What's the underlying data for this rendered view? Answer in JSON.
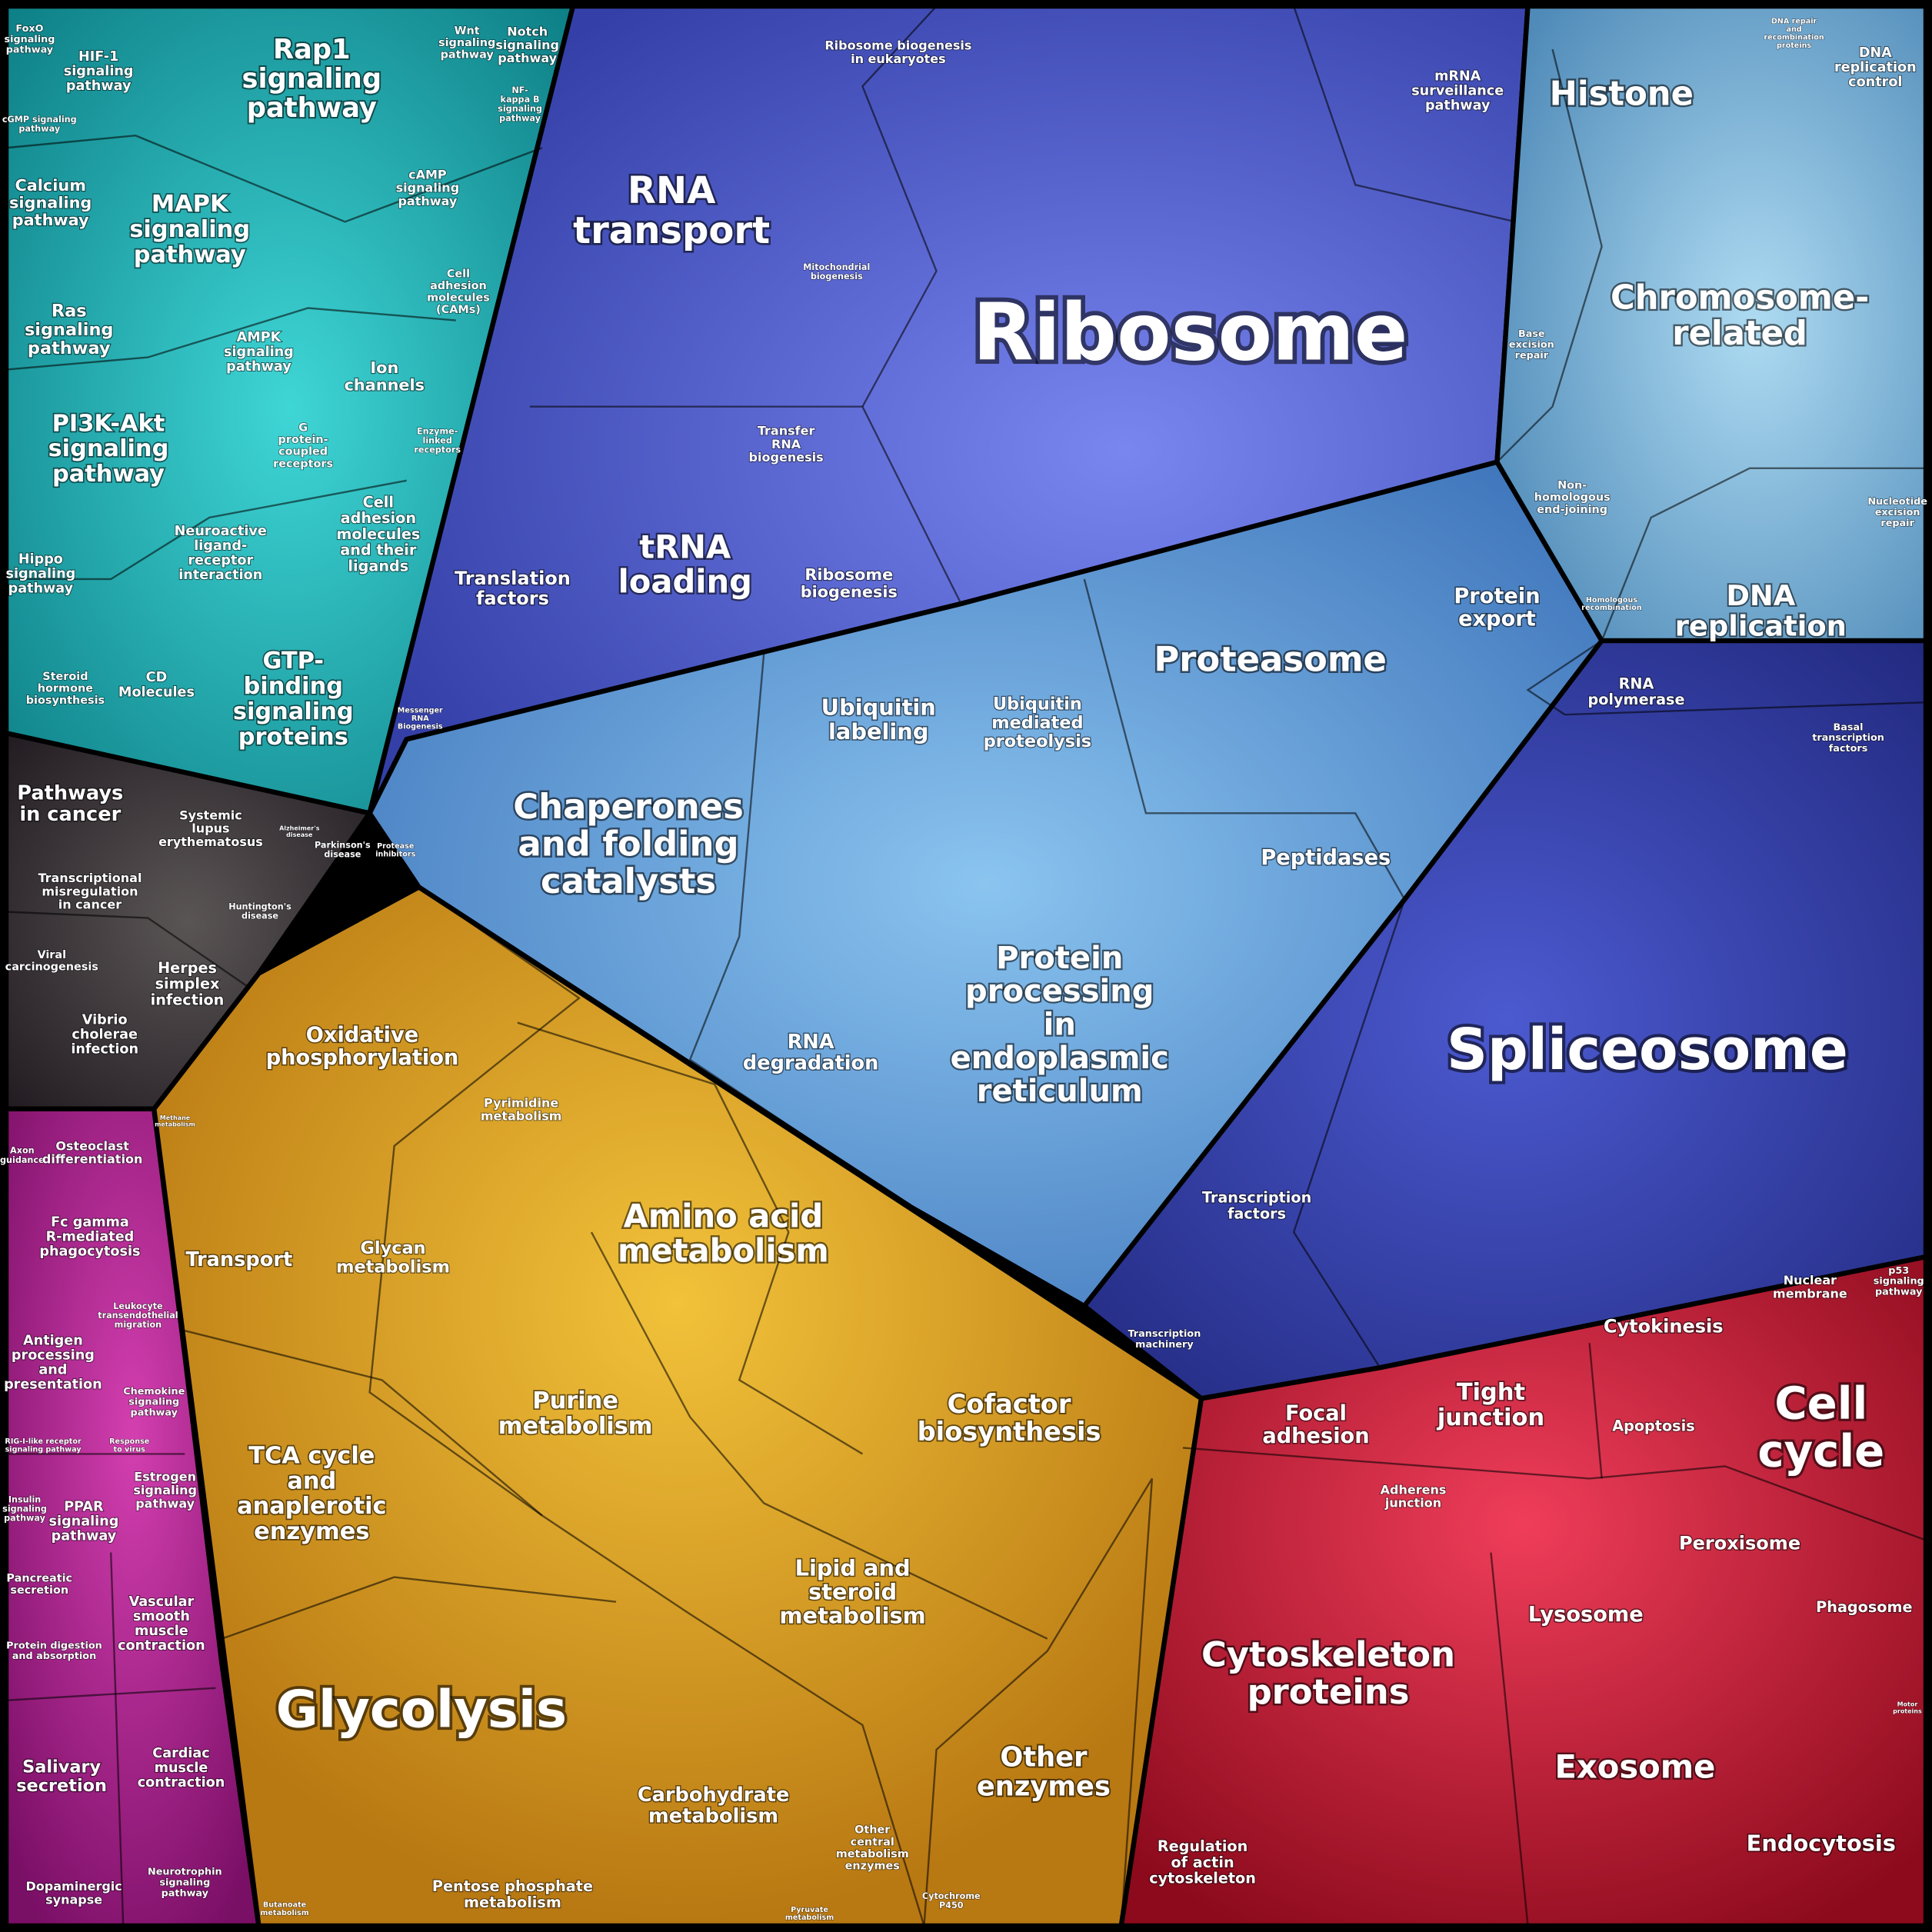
{
  "labels": [
    [
      "FoxO",
      "signaling",
      "pathway"
    ],
    [
      "HIF-1",
      "signaling",
      "pathway"
    ],
    [
      "Rap1",
      "signaling",
      "pathway"
    ],
    [
      "Wnt",
      "signaling",
      "pathway"
    ],
    [
      "Notch",
      "signaling",
      "pathway"
    ],
    [
      "Calcium",
      "signaling",
      "pathway"
    ],
    [
      "MAPK",
      "signaling",
      "pathway"
    ],
    [
      "cAMP",
      "signaling",
      "pathway"
    ],
    [
      "cGMP signaling",
      "pathway"
    ],
    [
      "Ras",
      "signaling",
      "pathway"
    ],
    [
      "AMPK",
      "signaling",
      "pathway"
    ],
    [
      "Cell",
      "adhesion",
      "molecules",
      "(CAMs)"
    ],
    [
      "Ion",
      "channels"
    ],
    [
      "PI3K-Akt",
      "signaling",
      "pathway"
    ],
    [
      "G",
      "protein-",
      "coupled",
      "receptors"
    ],
    [
      "Cell",
      "adhesion",
      "molecules",
      "and their",
      "ligands"
    ],
    [
      "Neuroactive",
      "ligand-",
      "receptor",
      "interaction"
    ],
    [
      "Hippo",
      "signaling",
      "pathway"
    ],
    [
      "Steroid",
      "hormone",
      "biosynthesis"
    ],
    [
      "CD",
      "Molecules"
    ],
    [
      "GTP-",
      "binding",
      "signaling",
      "proteins"
    ],
    [
      "NF-",
      "kappa B",
      "signaling",
      "pathway"
    ],
    [
      "Enzyme-",
      "linked",
      "receptors"
    ],
    [
      "Pathways",
      "in cancer"
    ],
    [
      "Systemic",
      "lupus",
      "erythematosus"
    ],
    [
      "Transcriptional",
      "misregulation",
      "in cancer"
    ],
    [
      "Parkinson's",
      "disease"
    ],
    [
      "Huntington's",
      "disease"
    ],
    [
      "Viral",
      "carcinogenesis"
    ],
    [
      "Herpes",
      "simplex",
      "infection"
    ],
    [
      "Vibrio",
      "cholerae",
      "infection"
    ],
    [
      "Alzheimer's",
      "disease"
    ],
    [
      "Axon",
      "guidance"
    ],
    [
      "Osteoclast",
      "differentiation"
    ],
    [
      "Fc gamma",
      "R-mediated",
      "phagocytosis"
    ],
    [
      "Leukocyte",
      "transendothelial",
      "migration"
    ],
    [
      "Antigen",
      "processing",
      "and",
      "presentation"
    ],
    [
      "Chemokine",
      "signaling",
      "pathway"
    ],
    [
      "RIG-I-like receptor",
      "signaling pathway"
    ],
    [
      "Response",
      "to virus"
    ],
    [
      "Insulin",
      "signaling",
      "pathway"
    ],
    [
      "PPAR",
      "signaling",
      "pathway"
    ],
    [
      "Estrogen",
      "signaling",
      "pathway"
    ],
    [
      "Pancreatic",
      "secretion"
    ],
    [
      "Protein digestion",
      "and absorption"
    ],
    [
      "Vascular",
      "smooth",
      "muscle",
      "contraction"
    ],
    [
      "Salivary",
      "secretion"
    ],
    [
      "Cardiac",
      "muscle",
      "contraction"
    ],
    [
      "Dopaminergic",
      "synapse"
    ],
    [
      "Neurotrophin",
      "signaling",
      "pathway"
    ],
    [
      "Oxidative",
      "phosphorylation"
    ],
    [
      "Pyrimidine",
      "metabolism"
    ],
    [
      "Methane",
      "metabolism"
    ],
    [
      "Transport"
    ],
    [
      "Glycan",
      "metabolism"
    ],
    [
      "Amino acid",
      "metabolism"
    ],
    [
      "Purine",
      "metabolism"
    ],
    [
      "Cofactor",
      "biosynthesis"
    ],
    [
      "TCA cycle",
      "and",
      "anaplerotic",
      "enzymes"
    ],
    [
      "Lipid and",
      "steroid",
      "metabolism"
    ],
    [
      "Glycolysis"
    ],
    [
      "Carbohydrate",
      "metabolism"
    ],
    [
      "Other",
      "central",
      "metabolism",
      "enzymes"
    ],
    [
      "Pentose phosphate",
      "metabolism"
    ],
    [
      "Butanoate",
      "metabolism"
    ],
    [
      "Pyruvate",
      "metabolism"
    ],
    [
      "Other",
      "enzymes"
    ],
    [
      "Cytochrome",
      "P450"
    ],
    [
      "Ribosome biogenesis",
      "in eukaryotes"
    ],
    [
      "mRNA",
      "surveillance",
      "pathway"
    ],
    [
      "RNA",
      "transport"
    ],
    [
      "Mitochondrial",
      "biogenesis"
    ],
    [
      "Ribosome"
    ],
    [
      "Transfer",
      "RNA",
      "biogenesis"
    ],
    [
      "Translation",
      "factors"
    ],
    [
      "tRNA",
      "loading"
    ],
    [
      "Ribosome",
      "biogenesis"
    ],
    [
      "Messenger",
      "RNA",
      "Biogenesis"
    ],
    [
      "Protease",
      "inhibitors"
    ],
    [
      "Histone"
    ],
    [
      "DNA",
      "replication",
      "control"
    ],
    [
      "Chromosome-",
      "related"
    ],
    [
      "Base",
      "excision",
      "repair"
    ],
    [
      "Non-",
      "homologous",
      "end-joining"
    ],
    [
      "Nucleotide",
      "excision",
      "repair"
    ],
    [
      "Homologous",
      "recombination"
    ],
    [
      "DNA",
      "replication"
    ],
    [
      "DNA repair",
      "and",
      "recombination",
      "proteins"
    ],
    [
      "Protein",
      "export"
    ],
    [
      "Proteasome"
    ],
    [
      "Ubiquitin",
      "labeling"
    ],
    [
      "Ubiquitin",
      "mediated",
      "proteolysis"
    ],
    [
      "Chaperones",
      "and folding",
      "catalysts"
    ],
    [
      "Peptidases"
    ],
    [
      "RNA",
      "degradation"
    ],
    [
      "Protein",
      "processing",
      "in",
      "endoplasmic",
      "reticulum"
    ],
    [
      "Transcription",
      "factors"
    ],
    [
      "Transcription",
      "machinery"
    ],
    [
      "RNA",
      "polymerase"
    ],
    [
      "Basal",
      "transcription",
      "factors"
    ],
    [
      "Spliceosome"
    ],
    [
      "Nuclear",
      "membrane"
    ],
    [
      "p53",
      "signaling",
      "pathway"
    ],
    [
      "Cytokinesis"
    ],
    [
      "Focal",
      "adhesion"
    ],
    [
      "Tight",
      "junction"
    ],
    [
      "Apoptosis"
    ],
    [
      "Cell",
      "cycle"
    ],
    [
      "Adherens",
      "junction"
    ],
    [
      "Peroxisome"
    ],
    [
      "Lysosome"
    ],
    [
      "Phagosome"
    ],
    [
      "Cytoskeleton",
      "proteins"
    ],
    [
      "Exosome"
    ],
    [
      "Regulation",
      "of actin",
      "cytoskeleton"
    ],
    [
      "Endocytosis"
    ],
    [
      "Motor",
      "proteins"
    ]
  ]
}
